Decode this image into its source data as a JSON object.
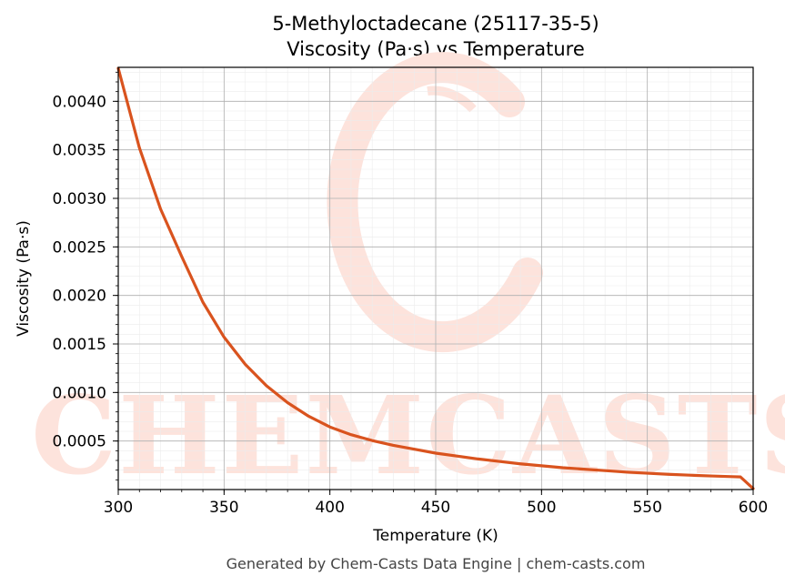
{
  "chart_data": {
    "type": "line",
    "title": "5-Methyloctadecane (25117-35-5)",
    "subtitle": "Viscosity (Pa·s) vs Temperature",
    "xlabel": "Temperature (K)",
    "ylabel": "Viscosity (Pa·s)",
    "xlim": [
      300,
      600
    ],
    "ylim": [
      0.0,
      0.00435
    ],
    "x_ticks": [
      "300",
      "350",
      "400",
      "450",
      "500",
      "550",
      "600"
    ],
    "y_ticks": [
      "0.0005",
      "0.0010",
      "0.0015",
      "0.0020",
      "0.0025",
      "0.0030",
      "0.0035",
      "0.0040"
    ],
    "grid": true,
    "series": [
      {
        "color": "#d9531e",
        "x": [
          300,
          310,
          320,
          330,
          340,
          350,
          360,
          370,
          380,
          390,
          400,
          410,
          420,
          430,
          440,
          450,
          460,
          470,
          480,
          490,
          500,
          510,
          520,
          530,
          540,
          550,
          560,
          570,
          580,
          590,
          594,
          600
        ],
        "y": [
          0.00434,
          0.00352,
          0.00289,
          0.0024,
          0.00193,
          0.00157,
          0.00129,
          0.00107,
          0.000895,
          0.000755,
          0.000645,
          0.000565,
          0.000505,
          0.000455,
          0.000415,
          0.000375,
          0.000345,
          0.000315,
          0.00029,
          0.000265,
          0.000245,
          0.000225,
          0.00021,
          0.000195,
          0.00018,
          0.000168,
          0.000157,
          0.000148,
          0.00014,
          0.000133,
          0.00013,
          1e-05
        ]
      }
    ]
  },
  "watermark": {
    "text": "CHEMCASTS",
    "color": "#fde3dc"
  },
  "footer": {
    "text": "Generated by Chem-Casts Data Engine | chem-casts.com"
  }
}
